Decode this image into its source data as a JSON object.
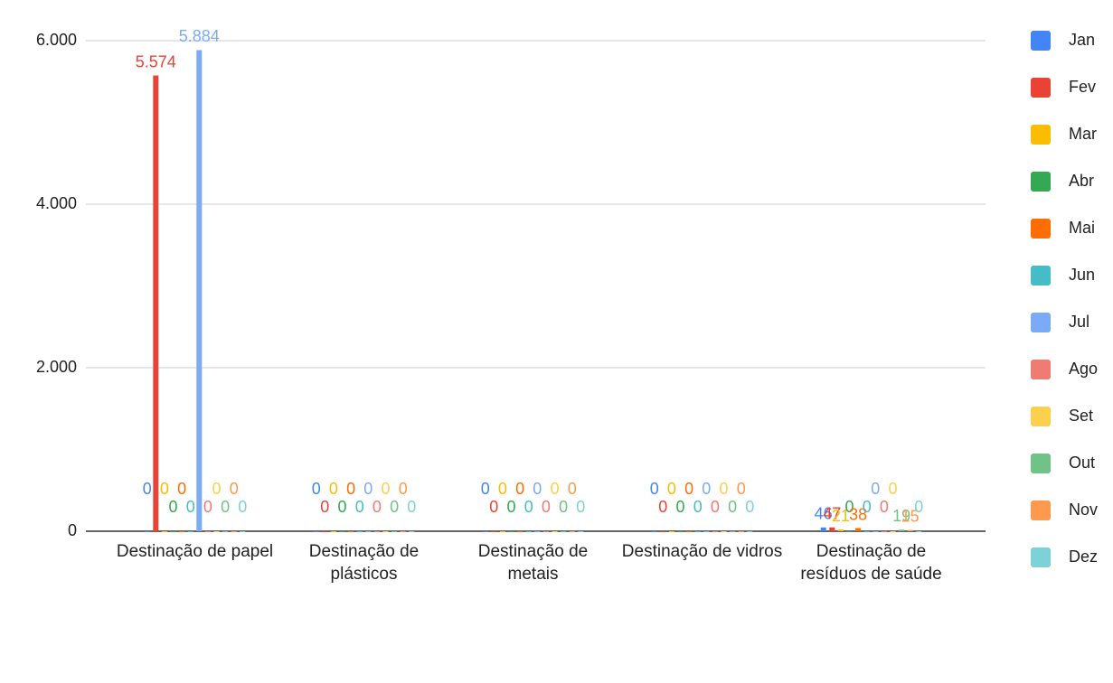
{
  "chart_data": {
    "type": "bar",
    "categories": [
      "Destinação de papel",
      "Destinação de plásticos",
      "Destinação de metais",
      "Destinação de vidros",
      "Destinação de resíduos de saúde"
    ],
    "series": [
      {
        "name": "Jan",
        "color": "#4285f4",
        "values": [
          0,
          0,
          0,
          0,
          46
        ]
      },
      {
        "name": "Fev",
        "color": "#ea4335",
        "values": [
          5574,
          0,
          0,
          0,
          47
        ],
        "value_labels": [
          "5.574",
          "0",
          "0",
          "0",
          "47"
        ]
      },
      {
        "name": "Mar",
        "color": "#fbbc04",
        "values": [
          0,
          0,
          0,
          0,
          21
        ]
      },
      {
        "name": "Abr",
        "color": "#34a853",
        "values": [
          0,
          0,
          0,
          0,
          0
        ]
      },
      {
        "name": "Mai",
        "color": "#ff6d01",
        "values": [
          0,
          0,
          0,
          0,
          38
        ]
      },
      {
        "name": "Jun",
        "color": "#46bdc6",
        "values": [
          0,
          0,
          0,
          0,
          0
        ]
      },
      {
        "name": "Jul",
        "color": "#7baaf7",
        "values": [
          5884,
          0,
          0,
          0,
          0
        ],
        "value_labels": [
          "5.884",
          "0",
          "0",
          "0",
          "0"
        ]
      },
      {
        "name": "Ago",
        "color": "#f07b72",
        "values": [
          0,
          0,
          0,
          0,
          0
        ]
      },
      {
        "name": "Set",
        "color": "#fcd04f",
        "values": [
          0,
          0,
          0,
          0,
          0
        ]
      },
      {
        "name": "Out",
        "color": "#71c287",
        "values": [
          0,
          0,
          0,
          0,
          19
        ]
      },
      {
        "name": "Nov",
        "color": "#ff994d",
        "values": [
          0,
          0,
          0,
          0,
          15
        ]
      },
      {
        "name": "Dez",
        "color": "#7ed1d7",
        "values": [
          0,
          0,
          0,
          0,
          0
        ]
      }
    ],
    "ylim": [
      0,
      6000
    ],
    "yticks": [
      0,
      {
        "value": 2000,
        "label": "2.000"
      },
      {
        "value": 4000,
        "label": "4.000"
      },
      {
        "value": 6000,
        "label": "6.000"
      }
    ],
    "grid": true,
    "legend": "right"
  }
}
